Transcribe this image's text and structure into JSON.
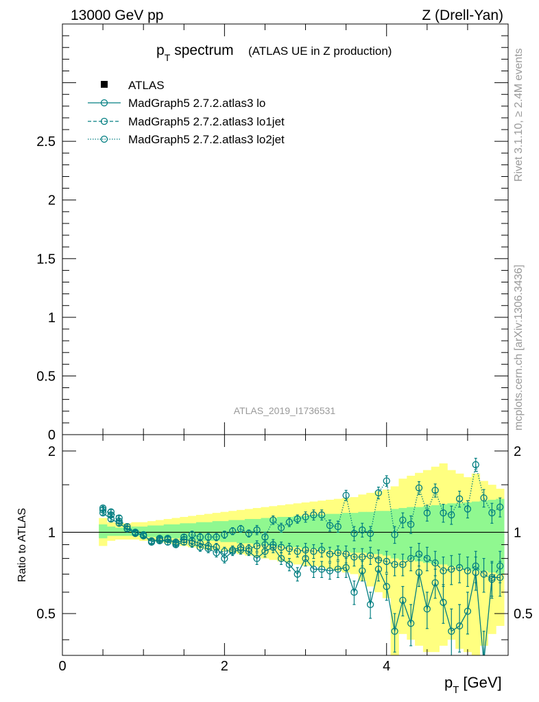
{
  "header": {
    "energy": "13000 GeV pp",
    "process": "Z (Drell-Yan)"
  },
  "side": {
    "rivet": "Rivet 3.1.10, ≥ 2.4M events",
    "mcplots": "mcplots.cern.ch [arXiv:1306.3436]"
  },
  "colors": {
    "mc": "#007d80",
    "band_outer": "#ffff80",
    "band_inner": "#90f890",
    "label_gray": "#999999"
  },
  "chart_data": [
    {
      "type": "line",
      "title_main": "p",
      "title_sub": "T",
      "title_word": "spectrum",
      "title_extra": "(ATLAS UE in Z production)",
      "watermark": "ATLAS_2019_I1736531",
      "xlim": [
        0,
        5.5
      ],
      "ylim": [
        0,
        3.5
      ],
      "y_ticks": [
        0,
        0.5,
        1,
        1.5,
        2,
        2.5
      ],
      "y_tick_labels": [
        "0",
        "0.5",
        "1",
        "1.5",
        "2",
        "2.5"
      ],
      "legend_position": "top-left",
      "legend": [
        {
          "name": "ATLAS",
          "style": "data"
        },
        {
          "name": "MadGraph5 2.7.2.atlas3 lo",
          "style": "solid"
        },
        {
          "name": "MadGraph5 2.7.2.atlas3 lo1jet",
          "style": "dashed"
        },
        {
          "name": "MadGraph5 2.7.2.atlas3 lo2jet",
          "style": "dotted"
        }
      ]
    },
    {
      "type": "line",
      "ylabel": "Ratio to ATLAS",
      "xlabel_main": "p",
      "xlabel_sub": "T",
      "xlabel_unit": "[GeV]",
      "xlim": [
        0,
        5.5
      ],
      "ylim": [
        0.35,
        2.3
      ],
      "log_y": true,
      "x_ticks": [
        0,
        2,
        4
      ],
      "x_tick_labels": [
        "0",
        "2",
        "4"
      ],
      "y_ticks": [
        0.5,
        1,
        2
      ],
      "y_tick_labels": [
        "0.5",
        "1",
        "2"
      ],
      "reference_line": 1,
      "x": [
        0.5,
        0.6,
        0.7,
        0.8,
        0.9,
        1.0,
        1.1,
        1.2,
        1.3,
        1.4,
        1.5,
        1.6,
        1.7,
        1.8,
        1.9,
        2.0,
        2.1,
        2.2,
        2.3,
        2.4,
        2.5,
        2.6,
        2.7,
        2.8,
        2.9,
        3.0,
        3.1,
        3.2,
        3.3,
        3.4,
        3.5,
        3.6,
        3.7,
        3.8,
        3.9,
        4.0,
        4.1,
        4.2,
        4.3,
        4.4,
        4.5,
        4.6,
        4.7,
        4.8,
        4.9,
        5.0,
        5.1,
        5.2,
        5.3,
        5.4
      ],
      "band_inner": [
        [
          0.95,
          1.07
        ],
        [
          0.97,
          1.05
        ],
        [
          0.97,
          1.04
        ],
        [
          0.97,
          1.04
        ],
        [
          0.97,
          1.05
        ],
        [
          0.96,
          1.05
        ],
        [
          0.96,
          1.06
        ],
        [
          0.95,
          1.06
        ],
        [
          0.95,
          1.07
        ],
        [
          0.95,
          1.07
        ],
        [
          0.94,
          1.08
        ],
        [
          0.94,
          1.08
        ],
        [
          0.93,
          1.09
        ],
        [
          0.93,
          1.09
        ],
        [
          0.93,
          1.1
        ],
        [
          0.92,
          1.1
        ],
        [
          0.92,
          1.11
        ],
        [
          0.91,
          1.11
        ],
        [
          0.91,
          1.12
        ],
        [
          0.9,
          1.12
        ],
        [
          0.9,
          1.13
        ],
        [
          0.89,
          1.13
        ],
        [
          0.89,
          1.14
        ],
        [
          0.88,
          1.14
        ],
        [
          0.88,
          1.15
        ],
        [
          0.87,
          1.15
        ],
        [
          0.87,
          1.16
        ],
        [
          0.86,
          1.16
        ],
        [
          0.86,
          1.17
        ],
        [
          0.85,
          1.17
        ],
        [
          0.85,
          1.18
        ],
        [
          0.84,
          1.18
        ],
        [
          0.84,
          1.19
        ],
        [
          0.83,
          1.19
        ],
        [
          0.83,
          1.2
        ],
        [
          0.82,
          1.2
        ],
        [
          0.8,
          1.22
        ],
        [
          0.79,
          1.23
        ],
        [
          0.79,
          1.24
        ],
        [
          0.78,
          1.24
        ],
        [
          0.77,
          1.25
        ],
        [
          0.76,
          1.26
        ],
        [
          0.76,
          1.27
        ],
        [
          0.75,
          1.28
        ],
        [
          0.74,
          1.28
        ],
        [
          0.73,
          1.29
        ],
        [
          0.72,
          1.3
        ],
        [
          0.72,
          1.31
        ],
        [
          0.71,
          1.32
        ],
        [
          0.7,
          1.33
        ]
      ],
      "band_outer": [
        [
          0.89,
          1.13
        ],
        [
          0.93,
          1.09
        ],
        [
          0.94,
          1.08
        ],
        [
          0.94,
          1.08
        ],
        [
          0.94,
          1.09
        ],
        [
          0.93,
          1.09
        ],
        [
          0.93,
          1.1
        ],
        [
          0.92,
          1.11
        ],
        [
          0.91,
          1.12
        ],
        [
          0.9,
          1.13
        ],
        [
          0.89,
          1.14
        ],
        [
          0.88,
          1.15
        ],
        [
          0.87,
          1.16
        ],
        [
          0.86,
          1.17
        ],
        [
          0.86,
          1.18
        ],
        [
          0.85,
          1.19
        ],
        [
          0.84,
          1.2
        ],
        [
          0.83,
          1.21
        ],
        [
          0.82,
          1.22
        ],
        [
          0.81,
          1.23
        ],
        [
          0.8,
          1.24
        ],
        [
          0.79,
          1.25
        ],
        [
          0.78,
          1.26
        ],
        [
          0.77,
          1.27
        ],
        [
          0.76,
          1.28
        ],
        [
          0.75,
          1.29
        ],
        [
          0.75,
          1.3
        ],
        [
          0.74,
          1.31
        ],
        [
          0.73,
          1.32
        ],
        [
          0.72,
          1.33
        ],
        [
          0.71,
          1.34
        ],
        [
          0.7,
          1.35
        ],
        [
          0.66,
          1.38
        ],
        [
          0.63,
          1.4
        ],
        [
          0.6,
          1.42
        ],
        [
          0.57,
          1.44
        ],
        [
          0.35,
          1.48
        ],
        [
          0.42,
          1.58
        ],
        [
          0.4,
          1.62
        ],
        [
          0.38,
          1.66
        ],
        [
          0.36,
          1.7
        ],
        [
          0.36,
          1.75
        ],
        [
          0.38,
          1.8
        ],
        [
          0.4,
          1.7
        ],
        [
          0.37,
          1.65
        ],
        [
          0.36,
          1.6
        ],
        [
          0.35,
          1.65
        ],
        [
          0.38,
          1.55
        ],
        [
          0.42,
          1.5
        ],
        [
          0.45,
          1.45
        ]
      ],
      "series": [
        {
          "name": "MadGraph5 2.7.2.atlas3 lo",
          "dash": "solid",
          "values": [
            1.18,
            1.12,
            1.08,
            1.03,
            1.0,
            0.97,
            0.93,
            0.93,
            0.94,
            0.91,
            0.94,
            0.93,
            0.91,
            0.89,
            0.88,
            0.8,
            0.85,
            0.86,
            0.85,
            0.8,
            0.85,
            0.88,
            0.8,
            0.76,
            0.7,
            0.8,
            0.73,
            0.73,
            0.72,
            0.73,
            0.74,
            0.6,
            0.72,
            0.54,
            0.73,
            0.63,
            0.43,
            0.56,
            0.46,
            0.71,
            0.52,
            0.65,
            0.55,
            0.43,
            0.45,
            0.51,
            0.71,
            0.33,
            0.68,
            0.68
          ],
          "errors": [
            0.02,
            0.02,
            0.02,
            0.02,
            0.02,
            0.02,
            0.02,
            0.02,
            0.02,
            0.02,
            0.02,
            0.03,
            0.03,
            0.03,
            0.03,
            0.03,
            0.03,
            0.03,
            0.03,
            0.04,
            0.04,
            0.04,
            0.04,
            0.04,
            0.04,
            0.05,
            0.05,
            0.05,
            0.05,
            0.05,
            0.06,
            0.06,
            0.06,
            0.06,
            0.07,
            0.07,
            0.07,
            0.07,
            0.08,
            0.08,
            0.08,
            0.08,
            0.09,
            0.09,
            0.09,
            0.09,
            0.1,
            0.1,
            0.1,
            0.1
          ]
        },
        {
          "name": "MadGraph5 2.7.2.atlas3 lo1jet",
          "dash": "dashed",
          "values": [
            1.23,
            1.16,
            1.1,
            1.05,
            1.0,
            0.97,
            0.92,
            0.94,
            0.92,
            0.9,
            0.92,
            0.91,
            0.88,
            0.87,
            0.84,
            0.85,
            0.86,
            0.88,
            0.87,
            0.89,
            0.9,
            0.9,
            0.88,
            0.87,
            0.85,
            0.86,
            0.85,
            0.86,
            0.83,
            0.84,
            0.83,
            0.81,
            0.81,
            0.82,
            0.79,
            0.78,
            0.76,
            0.76,
            0.8,
            0.83,
            0.8,
            0.77,
            0.72,
            0.73,
            0.74,
            0.72,
            0.75,
            0.7,
            0.67,
            0.75
          ],
          "errors": [
            0.02,
            0.02,
            0.02,
            0.02,
            0.02,
            0.02,
            0.02,
            0.02,
            0.02,
            0.02,
            0.02,
            0.03,
            0.03,
            0.03,
            0.03,
            0.03,
            0.03,
            0.03,
            0.03,
            0.04,
            0.04,
            0.04,
            0.04,
            0.04,
            0.04,
            0.05,
            0.05,
            0.05,
            0.05,
            0.05,
            0.06,
            0.06,
            0.06,
            0.06,
            0.07,
            0.07,
            0.07,
            0.07,
            0.08,
            0.08,
            0.08,
            0.08,
            0.09,
            0.09,
            0.09,
            0.09,
            0.1,
            0.1,
            0.1,
            0.1
          ]
        },
        {
          "name": "MadGraph5 2.7.2.atlas3 lo2jet",
          "dash": "dotted",
          "values": [
            1.21,
            1.19,
            1.13,
            1.03,
            0.99,
            0.98,
            0.92,
            0.95,
            0.95,
            0.92,
            0.96,
            0.98,
            0.96,
            0.96,
            0.96,
            0.98,
            1.01,
            1.03,
            0.99,
            1.02,
            0.96,
            1.11,
            1.04,
            1.09,
            1.12,
            1.14,
            1.16,
            1.16,
            1.06,
            1.05,
            1.37,
            0.99,
            1.02,
            0.99,
            1.4,
            1.55,
            0.98,
            1.11,
            1.07,
            1.46,
            1.18,
            1.43,
            1.18,
            1.16,
            1.33,
            1.22,
            1.78,
            1.34,
            1.18,
            1.24
          ],
          "errors": [
            0.02,
            0.02,
            0.02,
            0.02,
            0.02,
            0.02,
            0.02,
            0.02,
            0.02,
            0.02,
            0.02,
            0.03,
            0.03,
            0.03,
            0.03,
            0.03,
            0.03,
            0.03,
            0.03,
            0.04,
            0.04,
            0.04,
            0.04,
            0.04,
            0.04,
            0.05,
            0.05,
            0.05,
            0.05,
            0.05,
            0.06,
            0.06,
            0.06,
            0.06,
            0.07,
            0.07,
            0.07,
            0.07,
            0.08,
            0.08,
            0.08,
            0.08,
            0.09,
            0.09,
            0.09,
            0.09,
            0.1,
            0.1,
            0.1,
            0.1
          ]
        }
      ]
    }
  ]
}
